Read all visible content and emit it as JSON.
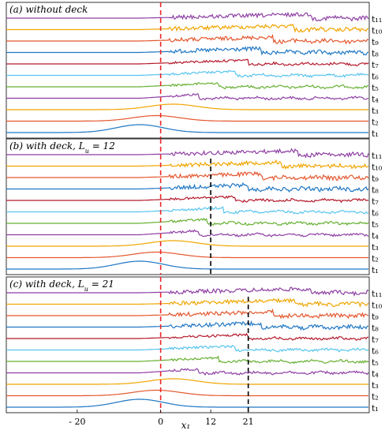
{
  "chart_data": {
    "type": "line",
    "xlabel": "x₁",
    "xlim": [
      -37,
      50
    ],
    "xticks": [
      -20,
      0,
      12,
      21
    ],
    "xtick_labels": [
      "- 20",
      "0",
      "12",
      "21"
    ],
    "grid": false,
    "legend": "none",
    "wave_gauge_x": 0,
    "time_labels": [
      "t₁",
      "t₂",
      "t₃",
      "t₄",
      "t₅",
      "t₆",
      "t₇",
      "t₈",
      "t₉",
      "t₁₀",
      "t₁₁"
    ],
    "series_colors": [
      "#1f77c4",
      "#e4572e",
      "#f0a500",
      "#8e3fa3",
      "#66b032",
      "#56c4ee",
      "#b5192b",
      "#1f77c4",
      "#e4572e",
      "#f0a500",
      "#8e3fa3"
    ],
    "crest_positions": [
      -5,
      -1,
      3,
      9,
      14,
      18,
      21,
      24,
      27,
      32,
      36
    ],
    "deck_color": "#000000",
    "gauge_color": "#e8262a",
    "panels": [
      {
        "title": "(a) without deck",
        "deck_x": null
      },
      {
        "title": "(b) with deck, L",
        "title_sub": "u",
        "title_tail": " = 12",
        "deck_x": 12
      },
      {
        "title": "(c) with deck, L",
        "title_sub": "u",
        "title_tail": " = 21",
        "deck_x": 21
      }
    ]
  }
}
